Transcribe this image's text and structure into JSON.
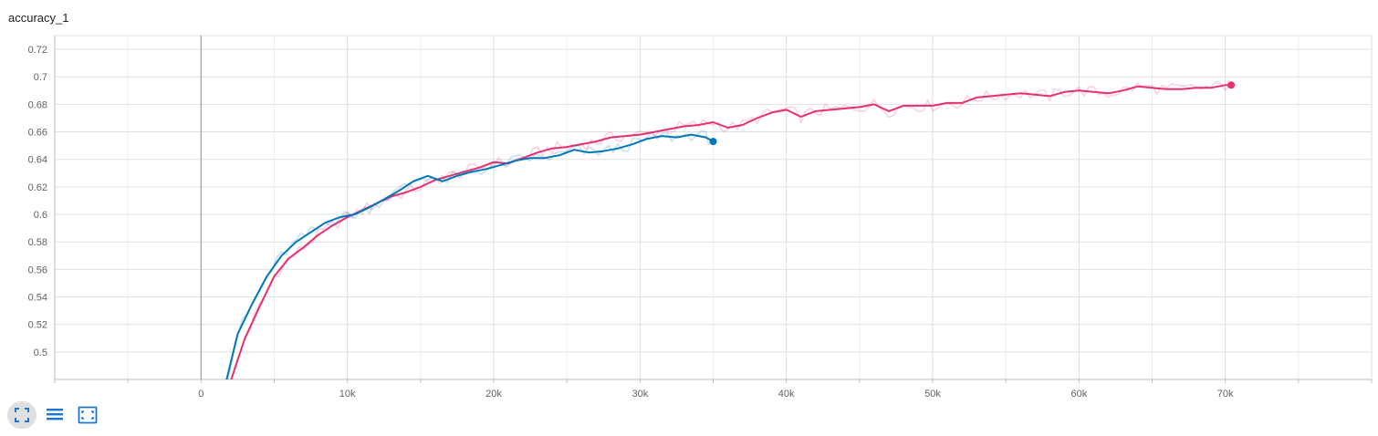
{
  "card": {
    "title": "accuracy_1"
  },
  "toolbar": {
    "buttons": [
      {
        "icon": "expand-icon",
        "active": true
      },
      {
        "icon": "list-icon",
        "active": false
      },
      {
        "icon": "fit-domain-icon",
        "active": false
      }
    ]
  },
  "colors": {
    "blue": "#0077bb",
    "pink": "#e7306e",
    "grid": "#e0e0e0",
    "axis": "#9e9e9e",
    "toolbar_icon": "#1976d2"
  },
  "chart_data": {
    "type": "line",
    "xlim": [
      -10000,
      80000
    ],
    "ylim": [
      0.48,
      0.73
    ],
    "x_ticks": [
      0,
      10000,
      20000,
      30000,
      40000,
      50000,
      60000,
      70000
    ],
    "x_tick_labels": [
      "0",
      "10k",
      "20k",
      "30k",
      "40k",
      "50k",
      "60k",
      "70k"
    ],
    "y_ticks": [
      0.5,
      0.52,
      0.54,
      0.56,
      0.58,
      0.6,
      0.62,
      0.64,
      0.66,
      0.68,
      0.7,
      0.72
    ],
    "y_tick_labels": [
      "0.5",
      "0.52",
      "0.54",
      "0.56",
      "0.58",
      "0.6",
      "0.62",
      "0.64",
      "0.66",
      "0.68",
      "0.7",
      "0.72"
    ],
    "grid": true,
    "series": [
      {
        "color": "#e7306e",
        "x": [
          2000,
          3000,
          4000,
          5000,
          6000,
          7000,
          8000,
          9000,
          10000,
          11000,
          12000,
          13000,
          14000,
          15000,
          16000,
          17000,
          18000,
          19000,
          20000,
          21000,
          22000,
          23000,
          24000,
          25000,
          26000,
          27000,
          28000,
          29000,
          30000,
          31000,
          32000,
          33000,
          34000,
          35000,
          36000,
          37000,
          38000,
          39000,
          40000,
          41000,
          42000,
          43000,
          44000,
          45000,
          46000,
          47000,
          48000,
          49000,
          50000,
          51000,
          52000,
          53000,
          54000,
          55000,
          56000,
          57000,
          58000,
          59000,
          60000,
          61000,
          62000,
          63000,
          64000,
          65000,
          66000,
          67000,
          68000,
          69000,
          70000,
          70400
        ],
        "y": [
          0.478,
          0.51,
          0.533,
          0.555,
          0.568,
          0.576,
          0.585,
          0.592,
          0.598,
          0.603,
          0.608,
          0.613,
          0.616,
          0.62,
          0.625,
          0.628,
          0.631,
          0.634,
          0.638,
          0.637,
          0.641,
          0.645,
          0.648,
          0.649,
          0.651,
          0.653,
          0.656,
          0.657,
          0.658,
          0.66,
          0.662,
          0.664,
          0.665,
          0.667,
          0.663,
          0.665,
          0.67,
          0.674,
          0.676,
          0.671,
          0.675,
          0.676,
          0.677,
          0.678,
          0.68,
          0.675,
          0.679,
          0.679,
          0.679,
          0.681,
          0.681,
          0.685,
          0.686,
          0.687,
          0.688,
          0.687,
          0.686,
          0.689,
          0.69,
          0.689,
          0.688,
          0.69,
          0.693,
          0.692,
          0.691,
          0.691,
          0.692,
          0.692,
          0.694,
          0.694
        ]
      },
      {
        "color": "#0077bb",
        "x": [
          1700,
          2500,
          3500,
          4500,
          5500,
          6500,
          7500,
          8500,
          9500,
          10500,
          11500,
          12500,
          13500,
          14500,
          15500,
          16500,
          17500,
          18500,
          19500,
          20500,
          21500,
          22500,
          23500,
          24500,
          25500,
          26500,
          27500,
          28500,
          29500,
          30500,
          31500,
          32500,
          33500,
          34500,
          35000
        ],
        "y": [
          0.478,
          0.513,
          0.535,
          0.555,
          0.57,
          0.58,
          0.587,
          0.594,
          0.598,
          0.6,
          0.605,
          0.611,
          0.617,
          0.624,
          0.628,
          0.624,
          0.628,
          0.631,
          0.633,
          0.636,
          0.639,
          0.641,
          0.641,
          0.643,
          0.647,
          0.645,
          0.646,
          0.648,
          0.651,
          0.655,
          0.657,
          0.656,
          0.658,
          0.656,
          0.653
        ]
      }
    ]
  }
}
